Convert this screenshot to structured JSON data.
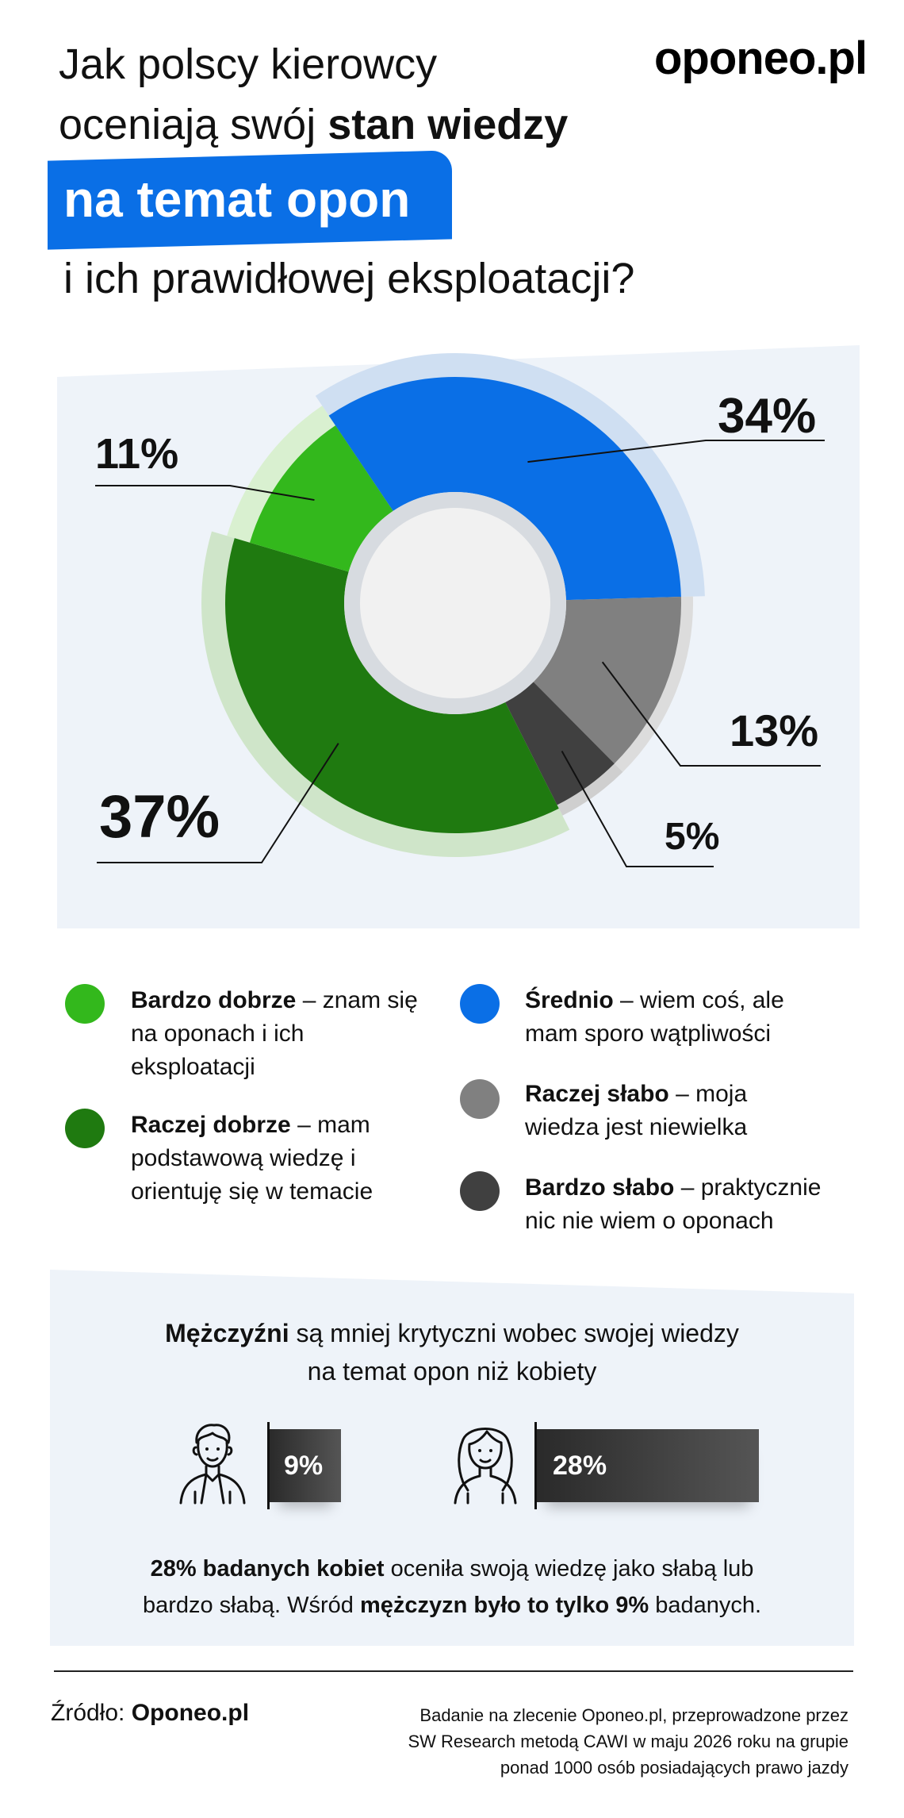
{
  "title": {
    "line1": "Jak polscy kierowcy",
    "line2_regular": "oceniają swój ",
    "line2_bold": "stan wiedzy",
    "highlight": "na temat opon",
    "line4": "i ich prawidłowej eksploatacji?"
  },
  "logo": "oponeo.pl",
  "colors": {
    "accent_blue": "#0a6fe6",
    "bardzo_dobrze": "#33b81c",
    "raczej_dobrze": "#1f7a10",
    "srednio": "#0a6fe6",
    "raczej_slabo": "#808080",
    "bardzo_slabo": "#404040"
  },
  "chart_data": {
    "type": "pie",
    "title": "",
    "slices": [
      {
        "key": "srednio",
        "value": 34,
        "label": "34%",
        "color": "#0a6fe6",
        "light": "#cfdff2"
      },
      {
        "key": "raczej_slabo",
        "value": 13,
        "label": "13%",
        "color": "#808080",
        "light": "#dcdcdc"
      },
      {
        "key": "bardzo_slabo",
        "value": 5,
        "label": "5%",
        "color": "#404040",
        "light": "#cfcfcf"
      },
      {
        "key": "raczej_dobrze",
        "value": 37,
        "label": "37%",
        "color": "#1f7a10",
        "light": "#cfe5c9"
      },
      {
        "key": "bardzo_dobrze",
        "value": 11,
        "label": "11%",
        "color": "#33b81c",
        "light": "#d9f0d0"
      }
    ]
  },
  "legend": [
    {
      "key": "bardzo_dobrze",
      "bold": "Bardzo dobrze",
      "rest": " – znam się na oponach i ich eksploatacji"
    },
    {
      "key": "raczej_dobrze",
      "bold": "Raczej dobrze",
      "rest": " – mam podstawową wiedzę i orientuję się w temacie"
    },
    {
      "key": "srednio",
      "bold": "Średnio",
      "rest": " – wiem coś, ale mam sporo wątpliwości"
    },
    {
      "key": "raczej_slabo",
      "bold": "Raczej słabo",
      "rest": " – moja wiedza jest niewielka"
    },
    {
      "key": "bardzo_slabo",
      "bold": "Bardzo słabo",
      "rest": " – praktycznie nic nie wiem o oponach"
    }
  ],
  "comparison": {
    "title_bold": "Mężczyźni",
    "title_rest": " są mniej krytyczni wobec swojej wiedzy",
    "title_line2": "na temat opon niż kobiety",
    "men": {
      "value": 9,
      "label": "9%",
      "icon": "man-icon"
    },
    "women": {
      "value": 28,
      "label": "28%",
      "icon": "woman-icon"
    },
    "note_bold1": "28% badanych kobiet",
    "note_rest1": " oceniła swoją wiedzę jako słabą lub",
    "note_line2_start": "bardzo słabą. Wśród ",
    "note_bold2": "mężczyzn było to tylko 9%",
    "note_line2_end": " badanych."
  },
  "footer": {
    "source_label": "Źródło: ",
    "source_name": "Oponeo.pl",
    "method_line1": "Badanie na zlecenie Oponeo.pl, przeprowadzone przez",
    "method_line2": "SW Research metodą CAWI w maju 2026 roku na grupie",
    "method_line3": "ponad 1000 osób posiadających prawo jazdy"
  }
}
